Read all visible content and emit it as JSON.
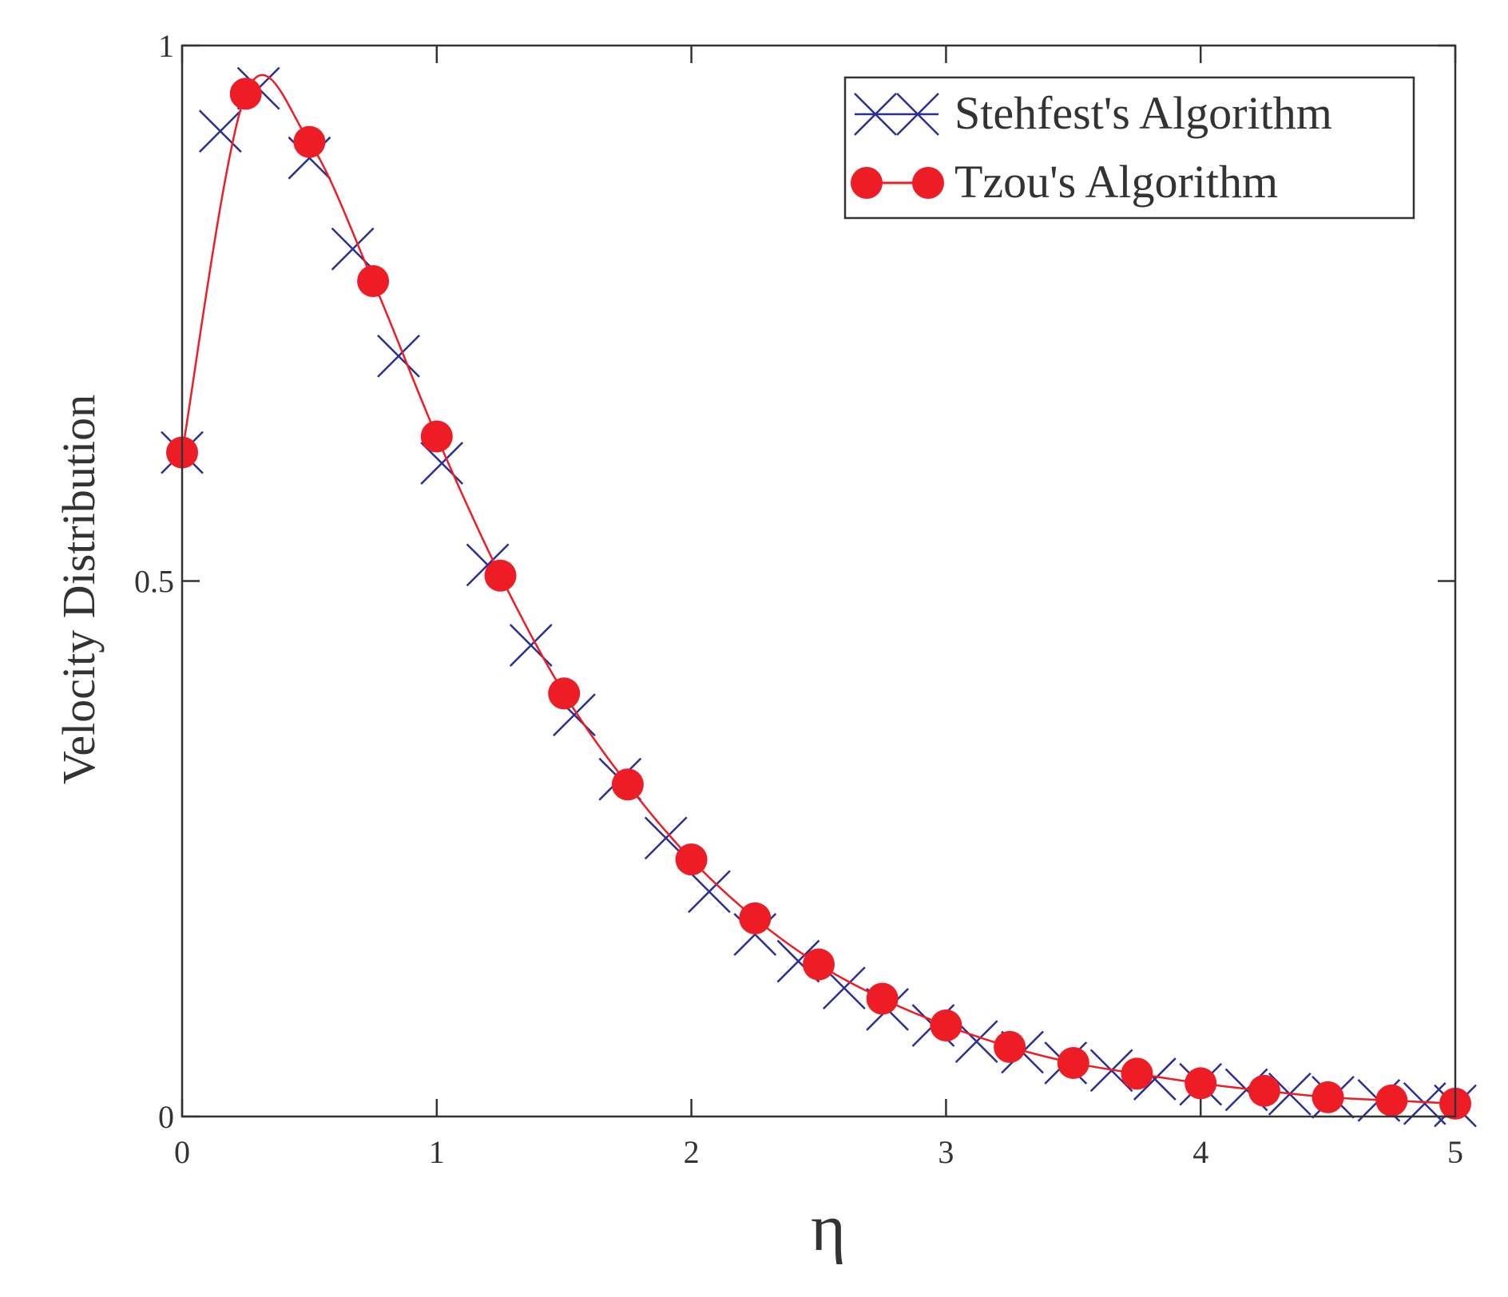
{
  "chart_data": {
    "type": "line",
    "title": "",
    "xlabel": "η",
    "ylabel": "Velocity Distribution",
    "xlim": [
      0,
      5
    ],
    "ylim": [
      0,
      1
    ],
    "x_ticks": [
      "0",
      "1",
      "2",
      "3",
      "4",
      "5"
    ],
    "y_ticks": [
      "0",
      "0.5",
      "1"
    ],
    "x_tick_values": [
      0,
      1,
      2,
      3,
      4,
      5
    ],
    "y_tick_values": [
      0,
      0.5,
      1
    ],
    "grid": false,
    "legend_position": "top-right",
    "colors": {
      "stehfest": "#2b2f8f",
      "tzou": "#ee1c25",
      "axes": "#333333"
    },
    "series": [
      {
        "name": "Stehfest's Algorithm",
        "marker": "x",
        "x": [
          0,
          0.15,
          0.3,
          0.5,
          0.67,
          0.85,
          1.02,
          1.2,
          1.37,
          1.54,
          1.72,
          1.9,
          2.07,
          2.25,
          2.42,
          2.6,
          2.77,
          2.95,
          3.12,
          3.3,
          3.47,
          3.65,
          3.82,
          4.0,
          4.18,
          4.35,
          4.52,
          4.7,
          4.88,
          5.0
        ],
        "values": [
          0.62,
          0.92,
          0.96,
          0.895,
          0.81,
          0.71,
          0.61,
          0.515,
          0.44,
          0.375,
          0.315,
          0.26,
          0.21,
          0.17,
          0.145,
          0.12,
          0.1,
          0.085,
          0.07,
          0.06,
          0.05,
          0.043,
          0.035,
          0.03,
          0.025,
          0.021,
          0.018,
          0.015,
          0.012,
          0.01
        ]
      },
      {
        "name": "Tzou's Algorithm",
        "marker": "o",
        "x": [
          0,
          0.25,
          0.5,
          0.75,
          1.0,
          1.25,
          1.5,
          1.75,
          2.0,
          2.25,
          2.5,
          2.75,
          3.0,
          3.25,
          3.5,
          3.75,
          4.0,
          4.25,
          4.5,
          4.75,
          5.0
        ],
        "values": [
          0.62,
          0.955,
          0.91,
          0.78,
          0.635,
          0.505,
          0.395,
          0.31,
          0.24,
          0.185,
          0.142,
          0.11,
          0.085,
          0.065,
          0.05,
          0.04,
          0.031,
          0.024,
          0.018,
          0.015,
          0.012
        ]
      }
    ]
  }
}
